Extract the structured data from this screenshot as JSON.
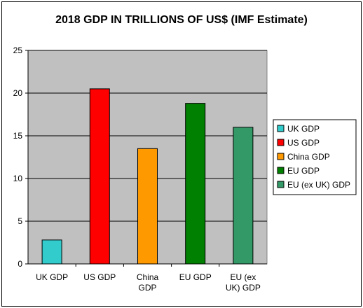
{
  "chart_data": {
    "type": "bar",
    "title": "2018 GDP IN TRILLIONS OF US$ (IMF Estimate)",
    "xlabel": "",
    "ylabel": "",
    "categories": [
      [
        "UK GDP"
      ],
      [
        "US GDP"
      ],
      [
        "China",
        "GDP"
      ],
      [
        "EU GDP"
      ],
      [
        "EU (ex",
        "UK) GDP"
      ]
    ],
    "values": [
      2.8,
      20.5,
      13.5,
      18.8,
      16.0
    ],
    "colors": [
      "#33cccc",
      "#ff0000",
      "#ff9900",
      "#008000",
      "#339966"
    ],
    "legend": [
      "UK GDP",
      "US GDP",
      "China GDP",
      "EU GDP",
      "EU (ex UK) GDP"
    ],
    "legend_position": "right",
    "ylim": [
      0,
      25
    ],
    "yticks": [
      "0",
      "5",
      "10",
      "15",
      "20",
      "25"
    ],
    "grid": true,
    "plot_background": "#c0c0c0"
  }
}
